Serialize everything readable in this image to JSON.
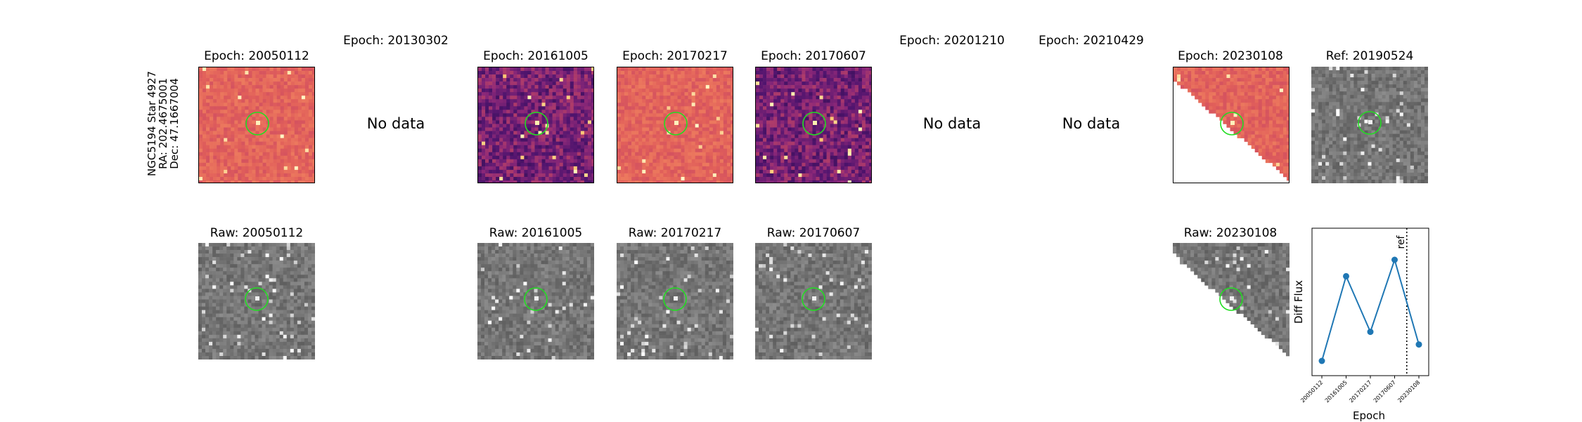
{
  "row_label": {
    "line1": "NGC5194 Star 4927",
    "line2": "RA: 202.4675001",
    "line3": "Dec: 47.1667004"
  },
  "top_row": [
    {
      "title": "Epoch: 20050112",
      "has_data": true,
      "cmap": "magma_light"
    },
    {
      "title": "Epoch: 20130302",
      "has_data": false,
      "nodata": "No data"
    },
    {
      "title": "Epoch: 20161005",
      "has_data": true,
      "cmap": "magma_dark"
    },
    {
      "title": "Epoch: 20170217",
      "has_data": true,
      "cmap": "magma_light"
    },
    {
      "title": "Epoch: 20170607",
      "has_data": true,
      "cmap": "magma_dark"
    },
    {
      "title": "Epoch: 20201210",
      "has_data": false,
      "nodata": "No data"
    },
    {
      "title": "Epoch: 20210429",
      "has_data": false,
      "nodata": "No data"
    },
    {
      "title": "Epoch: 20230108",
      "has_data": true,
      "cmap": "magma_light",
      "partial": true
    },
    {
      "title": "Ref: 20190524",
      "has_data": true,
      "cmap": "gray"
    }
  ],
  "bottom_row": [
    {
      "title": "Raw: 20050112"
    },
    {
      "title": "Raw: 20161005"
    },
    {
      "title": "Raw: 20170217"
    },
    {
      "title": "Raw: 20170607"
    },
    {
      "title": "Raw: 20230108",
      "partial": true
    }
  ],
  "colors": {
    "aperture": "#22dd22",
    "line": "#1f77b4"
  },
  "chart_data": {
    "type": "line",
    "x": [
      "20050112",
      "20161005",
      "20170217",
      "20170607",
      "20230108"
    ],
    "series": [
      {
        "values": [
          0.05,
          0.72,
          0.28,
          0.85,
          0.18
        ]
      }
    ],
    "xlabel": "Epoch",
    "ylabel": "Diff Flux",
    "reference_line": {
      "label": "ref",
      "after": "20170607",
      "style": "dotted"
    }
  }
}
